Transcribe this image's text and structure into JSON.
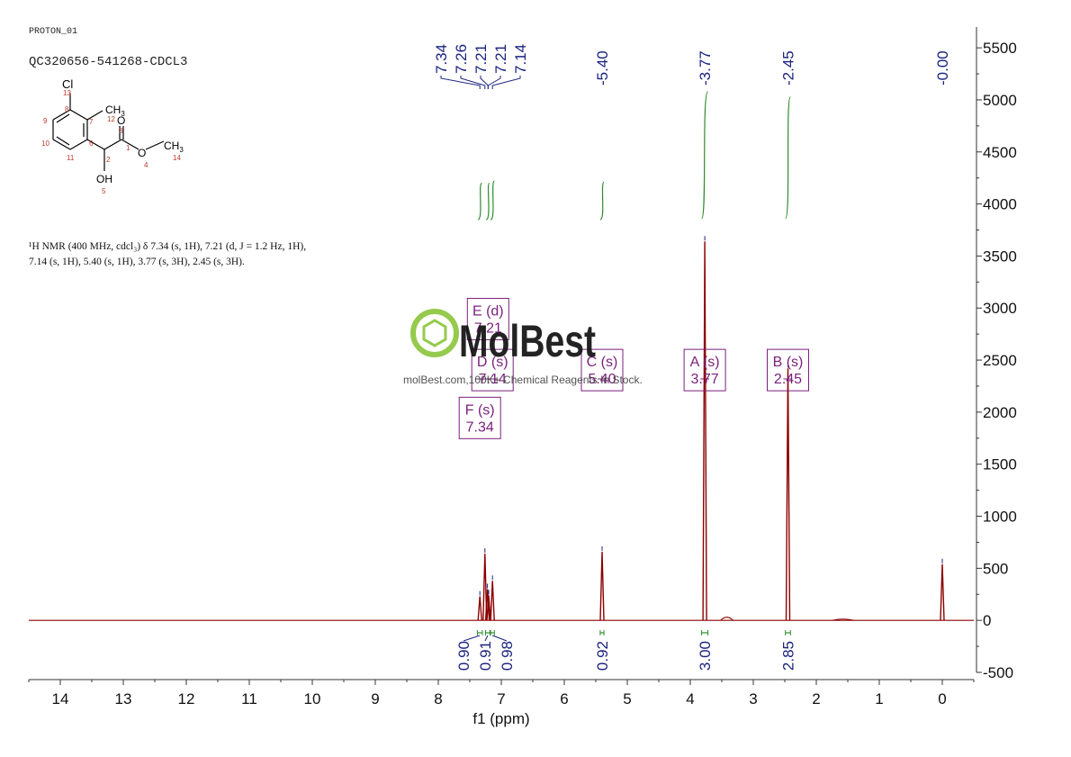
{
  "header": {
    "experiment": "PROTON_01",
    "sample_id": "QC320656-541268-CDCL3",
    "nmr_text_line1": "¹H NMR (400 MHz, cdcl₃) δ 7.34 (s, 1H), 7.21 (d, J = 1.2 Hz, 1H),",
    "nmr_text_line2": "7.14 (s, 1H), 5.40 (s, 1H), 3.77 (s, 3H), 2.45 (s, 3H)."
  },
  "molecule": {
    "atoms": {
      "cl": "Cl",
      "cl_num": "13",
      "c8": "8",
      "c7": "7",
      "c9": "9",
      "c10": "10",
      "c6": "6",
      "c11": "11",
      "ch3_left": "CH",
      "ch3_left_sub": "3",
      "c12": "12",
      "o_carbonyl": "O",
      "c3": "3",
      "c1": "1",
      "c2": "2",
      "o_ester": "O",
      "o4": "4",
      "ch3_right": "CH",
      "ch3_right_sub": "3",
      "c14": "14",
      "oh": "OH",
      "o5": "5"
    },
    "colors": {
      "bond": "#000000",
      "atom_number": "#c0392b"
    }
  },
  "watermark": {
    "brand": "MolBest",
    "tagline": "molBest.com,100K+ Chemical Reagents In Stock.",
    "colors": {
      "icon": "#8dc63f",
      "text": "#111111"
    }
  },
  "chart_data": {
    "type": "line",
    "title": "",
    "xlabel": "f1 (ppm)",
    "ylabel": "",
    "xlim": [
      14.5,
      -0.5
    ],
    "ylim": [
      -500,
      5700
    ],
    "x_ticks": [
      14,
      13,
      12,
      11,
      10,
      9,
      8,
      7,
      6,
      5,
      4,
      3,
      2,
      1,
      0
    ],
    "y_ticks": [
      -500,
      0,
      500,
      1000,
      1500,
      2000,
      2500,
      3000,
      3500,
      4000,
      4500,
      5000,
      5500
    ],
    "grid": false,
    "colors": {
      "spectrum": "#8b0000",
      "integral": "#2e8b2e",
      "label": "#1a237e",
      "multiplet": "#7b1f7b"
    },
    "peaks": [
      {
        "ppm": 7.34,
        "height": 230
      },
      {
        "ppm": 7.26,
        "height": 640
      },
      {
        "ppm": 7.22,
        "height": 300
      },
      {
        "ppm": 7.2,
        "height": 240
      },
      {
        "ppm": 7.14,
        "height": 380
      },
      {
        "ppm": 5.4,
        "height": 660
      },
      {
        "ppm": 3.77,
        "height": 3640
      },
      {
        "ppm": 2.45,
        "height": 2420
      },
      {
        "ppm": 0.0,
        "height": 540
      }
    ],
    "peak_labels": [
      {
        "ppm": 7.34,
        "text": "7.34"
      },
      {
        "ppm": 7.26,
        "text": "7.26"
      },
      {
        "ppm": 7.21,
        "text": "7.21"
      },
      {
        "ppm": 7.21,
        "text": "7.21"
      },
      {
        "ppm": 7.14,
        "text": "7.14"
      },
      {
        "ppm": 5.4,
        "text": "-5.40"
      },
      {
        "ppm": 3.77,
        "text": "-3.77"
      },
      {
        "ppm": 2.45,
        "text": "-2.45"
      },
      {
        "ppm": 0.0,
        "text": "-0.00"
      }
    ],
    "integrals": [
      {
        "from": 7.38,
        "to": 7.3,
        "value": "0.90"
      },
      {
        "from": 7.25,
        "to": 7.18,
        "value": "0.91"
      },
      {
        "from": 7.17,
        "to": 7.11,
        "value": "0.98"
      },
      {
        "from": 5.43,
        "to": 5.37,
        "value": "0.92"
      },
      {
        "from": 3.82,
        "to": 3.72,
        "value": "3.00"
      },
      {
        "from": 2.49,
        "to": 2.41,
        "value": "2.85"
      }
    ],
    "integral_curves": [
      {
        "from": 7.37,
        "to": 7.31,
        "y0": 3850,
        "y1": 4200
      },
      {
        "from": 7.24,
        "to": 7.19,
        "y0": 3850,
        "y1": 4200
      },
      {
        "from": 7.17,
        "to": 7.11,
        "y0": 3850,
        "y1": 4220
      },
      {
        "from": 5.43,
        "to": 5.37,
        "y0": 3850,
        "y1": 4210
      },
      {
        "from": 3.82,
        "to": 3.72,
        "y0": 3860,
        "y1": 5080
      },
      {
        "from": 2.49,
        "to": 2.41,
        "y0": 3860,
        "y1": 5030
      }
    ],
    "multiplets": [
      {
        "letter": "E (d)",
        "value": "7.21",
        "ppm": 7.21,
        "level": 3050
      },
      {
        "letter": "D (s)",
        "value": "7.14",
        "ppm": 7.14,
        "level": 2560
      },
      {
        "letter": "F (s)",
        "value": "7.34",
        "ppm": 7.34,
        "level": 2100
      },
      {
        "letter": "C (s)",
        "value": "5.40",
        "ppm": 5.4,
        "level": 2560
      },
      {
        "letter": "A (s)",
        "value": "3.77",
        "ppm": 3.77,
        "level": 2560
      },
      {
        "letter": "B (s)",
        "value": "2.45",
        "ppm": 2.45,
        "level": 2560
      }
    ]
  }
}
